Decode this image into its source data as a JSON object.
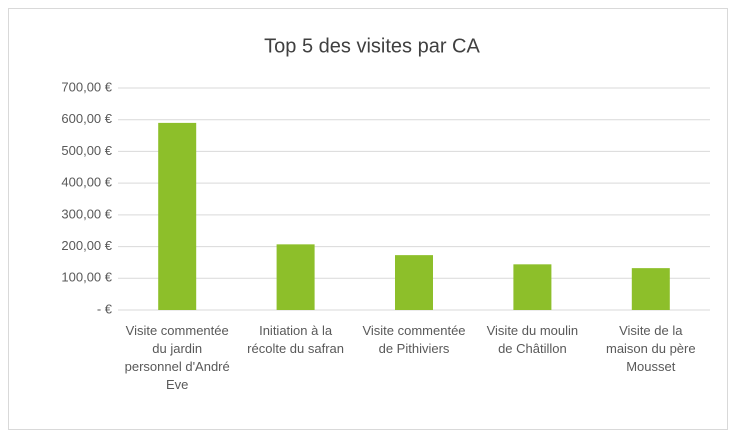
{
  "chart_data": {
    "type": "bar",
    "title": "Top 5 des visites par CA",
    "categories": [
      "Visite commentée du jardin personnel d'André Eve",
      "Initiation à la récolte du safran",
      "Visite commentée de Pithiviers",
      "Visite du moulin de Châtillon",
      "Visite de la maison du père Mousset"
    ],
    "values": [
      590,
      207,
      173,
      144,
      132
    ],
    "color": "#8dbf2a",
    "ylim": [
      0,
      700
    ],
    "yticks": [
      {
        "value": 0,
        "label": "-   €"
      },
      {
        "value": 100,
        "label": "100,00 €"
      },
      {
        "value": 200,
        "label": "200,00 €"
      },
      {
        "value": 300,
        "label": "300,00 €"
      },
      {
        "value": 400,
        "label": "400,00 €"
      },
      {
        "value": 500,
        "label": "500,00 €"
      },
      {
        "value": 600,
        "label": "600,00 €"
      },
      {
        "value": 700,
        "label": "700,00 €"
      }
    ],
    "grid": true
  }
}
